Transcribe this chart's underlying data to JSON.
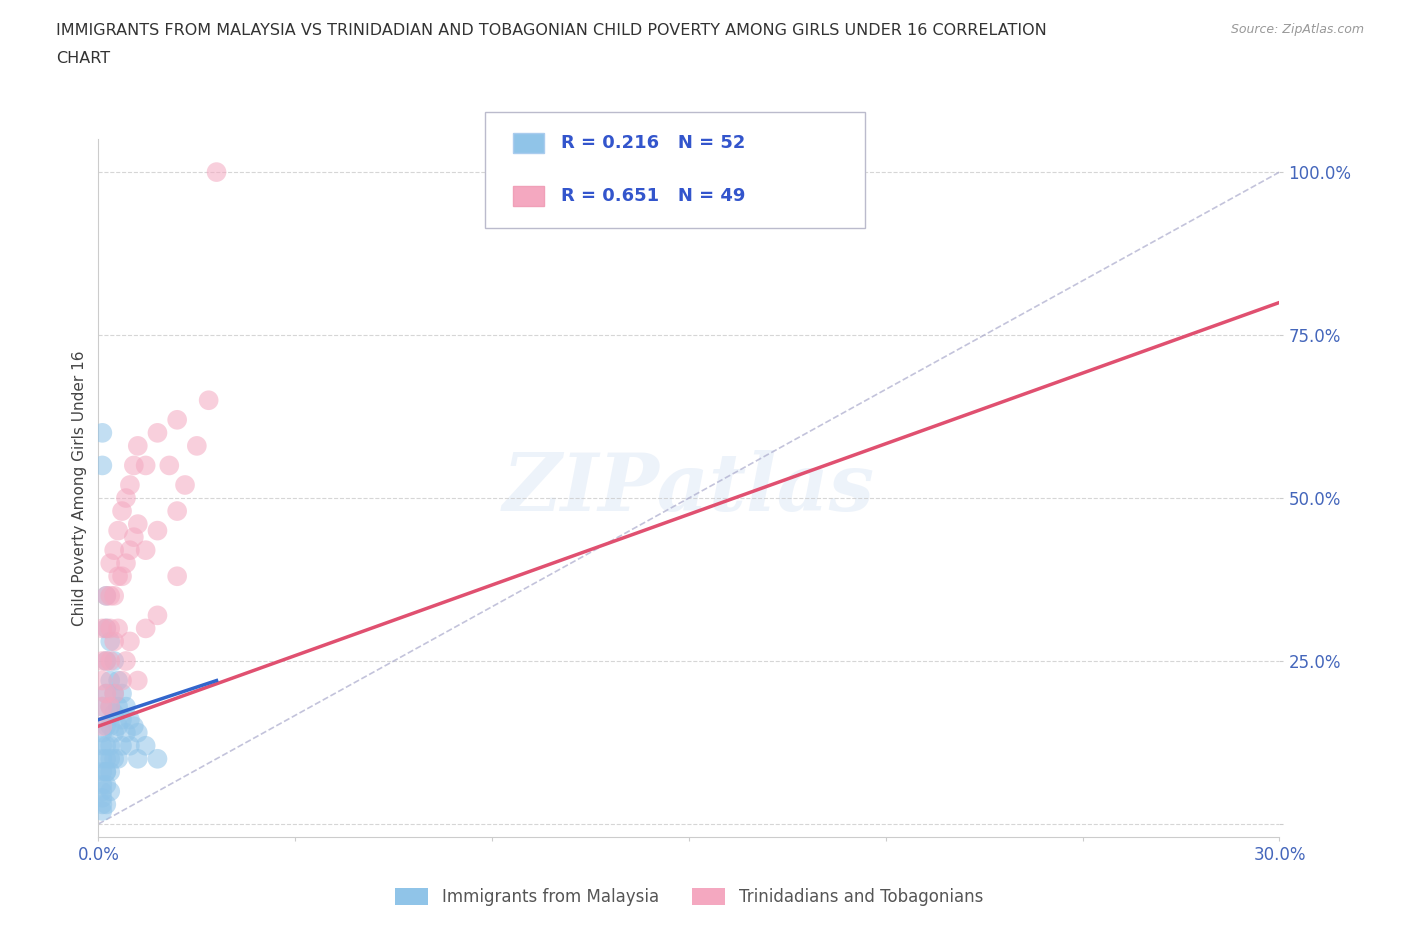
{
  "title_line1": "IMMIGRANTS FROM MALAYSIA VS TRINIDADIAN AND TOBAGONIAN CHILD POVERTY AMONG GIRLS UNDER 16 CORRELATION",
  "title_line2": "CHART",
  "source": "Source: ZipAtlas.com",
  "ylabel": "Child Poverty Among Girls Under 16",
  "xlabel_malaysia": "Immigrants from Malaysia",
  "xlabel_trinidadian": "Trinidadians and Tobagonians",
  "watermark": "ZIPatlas",
  "xlim": [
    0.0,
    0.3
  ],
  "ylim": [
    0.0,
    1.05
  ],
  "R_malaysia": 0.216,
  "N_malaysia": 52,
  "R_trinidadian": 0.651,
  "N_trinidadian": 49,
  "color_malaysia": "#90c4e8",
  "color_trinidadian": "#f4a8c0",
  "color_trend_malaysia": "#3366cc",
  "color_trend_trinidadian": "#e05070",
  "color_dash": "#aaaacc",
  "trend_malaysia_x0": 0.0,
  "trend_malaysia_y0": 0.16,
  "trend_malaysia_x1": 0.03,
  "trend_malaysia_y1": 0.22,
  "trend_trinidadian_x0": 0.0,
  "trend_trinidadian_y0": 0.15,
  "trend_trinidadian_x1": 0.3,
  "trend_trinidadian_y1": 0.8,
  "malaysia_x": [
    0.001,
    0.001,
    0.001,
    0.001,
    0.001,
    0.001,
    0.001,
    0.001,
    0.001,
    0.001,
    0.002,
    0.002,
    0.002,
    0.002,
    0.002,
    0.002,
    0.002,
    0.002,
    0.002,
    0.003,
    0.003,
    0.003,
    0.003,
    0.003,
    0.003,
    0.003,
    0.004,
    0.004,
    0.004,
    0.004,
    0.004,
    0.005,
    0.005,
    0.005,
    0.005,
    0.006,
    0.006,
    0.006,
    0.007,
    0.007,
    0.008,
    0.008,
    0.009,
    0.01,
    0.01,
    0.012,
    0.015,
    0.002,
    0.001,
    0.003,
    0.001,
    0.002
  ],
  "malaysia_y": [
    0.6,
    0.55,
    0.18,
    0.14,
    0.12,
    0.1,
    0.08,
    0.06,
    0.04,
    0.02,
    0.35,
    0.3,
    0.25,
    0.2,
    0.15,
    0.12,
    0.1,
    0.08,
    0.06,
    0.28,
    0.22,
    0.18,
    0.15,
    0.12,
    0.1,
    0.08,
    0.25,
    0.2,
    0.17,
    0.14,
    0.1,
    0.22,
    0.18,
    0.15,
    0.1,
    0.2,
    0.16,
    0.12,
    0.18,
    0.14,
    0.16,
    0.12,
    0.15,
    0.14,
    0.1,
    0.12,
    0.1,
    0.08,
    0.05,
    0.05,
    0.03,
    0.03
  ],
  "trinidadian_x": [
    0.001,
    0.001,
    0.001,
    0.001,
    0.001,
    0.002,
    0.002,
    0.002,
    0.002,
    0.003,
    0.003,
    0.003,
    0.003,
    0.004,
    0.004,
    0.004,
    0.005,
    0.005,
    0.005,
    0.006,
    0.006,
    0.007,
    0.007,
    0.008,
    0.008,
    0.009,
    0.009,
    0.01,
    0.01,
    0.012,
    0.012,
    0.015,
    0.015,
    0.018,
    0.02,
    0.02,
    0.022,
    0.025,
    0.028,
    0.03,
    0.003,
    0.004,
    0.006,
    0.007,
    0.008,
    0.01,
    0.012,
    0.015,
    0.02
  ],
  "trinidadian_y": [
    0.3,
    0.25,
    0.22,
    0.18,
    0.15,
    0.35,
    0.3,
    0.25,
    0.2,
    0.4,
    0.35,
    0.3,
    0.25,
    0.42,
    0.35,
    0.28,
    0.45,
    0.38,
    0.3,
    0.48,
    0.38,
    0.5,
    0.4,
    0.52,
    0.42,
    0.55,
    0.44,
    0.58,
    0.46,
    0.55,
    0.42,
    0.6,
    0.45,
    0.55,
    0.62,
    0.48,
    0.52,
    0.58,
    0.65,
    1.0,
    0.18,
    0.2,
    0.22,
    0.25,
    0.28,
    0.22,
    0.3,
    0.32,
    0.38
  ]
}
